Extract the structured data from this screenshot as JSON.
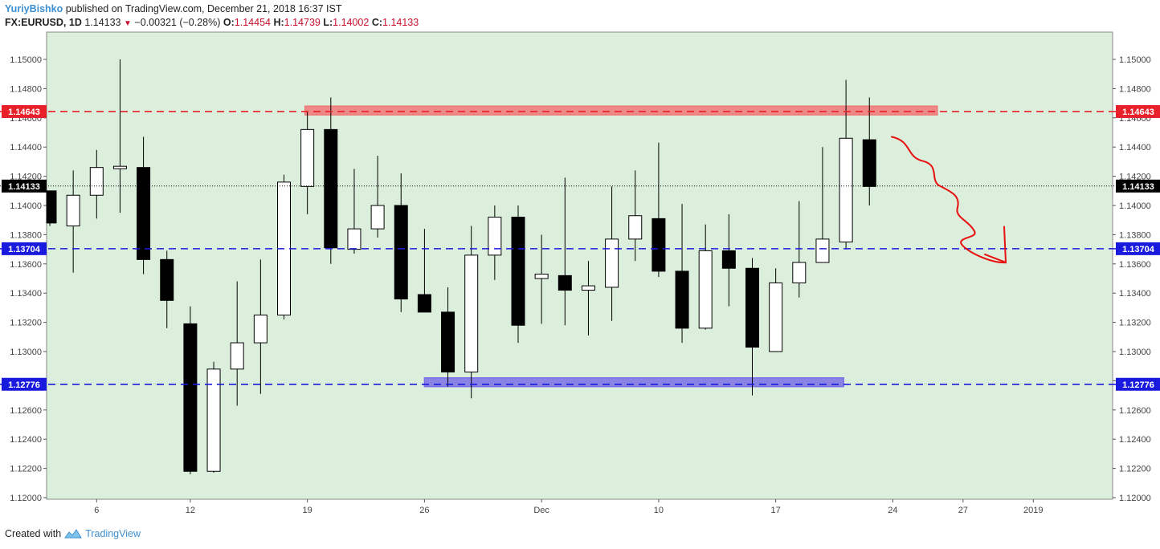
{
  "header": {
    "author": "YuriyBishko",
    "published": "published on TradingView.com, December 21, 2018 16:37 IST",
    "symbol": "FX:EURUSD, 1D",
    "last": "1.14133",
    "change": "−0.00321 (−0.28%)",
    "o_label": "O:",
    "o_value": "1.14454",
    "h_label": "H:",
    "h_value": "1.14739",
    "l_label": "L:",
    "l_value": "1.14002",
    "c_label": "C:",
    "c_value": "1.14133",
    "down_color": "#c8102e"
  },
  "footer": {
    "created_with": "Created with",
    "brand": "TradingView",
    "logo_icon": "tradingview-logo-icon"
  },
  "colors": {
    "background": "#dcefdc",
    "resistance_line": "#e8202a",
    "support_line": "#1a1adf",
    "resistance_zone": "#f07878",
    "support_zone": "#7a70e6",
    "annotation": "#e81010",
    "bull_body": "#ffffff",
    "bear_body": "#000000"
  },
  "chart_data": {
    "type": "candlestick",
    "symbol": "FX:EURUSD",
    "timeframe": "1D",
    "ylim": [
      1.12,
      1.1515
    ],
    "y_ticks": [
      "1.12000",
      "1.12200",
      "1.12400",
      "1.12600",
      "1.12800",
      "1.13000",
      "1.13200",
      "1.13400",
      "1.13600",
      "1.13800",
      "1.14000",
      "1.14200",
      "1.14400",
      "1.14600",
      "1.14800",
      "1.15000"
    ],
    "x_tick_labels": [
      {
        "label": "6",
        "bar": 2
      },
      {
        "label": "12",
        "bar": 6
      },
      {
        "label": "19",
        "bar": 11
      },
      {
        "label": "26",
        "bar": 16
      },
      {
        "label": "Dec",
        "bar": 21
      },
      {
        "label": "10",
        "bar": 26
      },
      {
        "label": "17",
        "bar": 31
      },
      {
        "label": "24",
        "bar": 36
      },
      {
        "label": "27",
        "bar": 39
      },
      {
        "label": "2019",
        "bar": 42
      }
    ],
    "candles": [
      {
        "o": 1.141,
        "h": 1.141,
        "l": 1.1386,
        "c": 1.1388
      },
      {
        "o": 1.1386,
        "h": 1.1424,
        "l": 1.1354,
        "c": 1.1407
      },
      {
        "o": 1.1407,
        "h": 1.1438,
        "l": 1.1391,
        "c": 1.1426
      },
      {
        "o": 1.1426,
        "h": 1.15,
        "l": 1.1395,
        "c": 1.1426
      },
      {
        "o": 1.1426,
        "h": 1.1447,
        "l": 1.1353,
        "c": 1.1363
      },
      {
        "o": 1.1363,
        "h": 1.1369,
        "l": 1.1316,
        "c": 1.1335
      },
      {
        "o": 1.1319,
        "h": 1.1331,
        "l": 1.1216,
        "c": 1.1218
      },
      {
        "o": 1.1218,
        "h": 1.1293,
        "l": 1.1217,
        "c": 1.1288
      },
      {
        "o": 1.1288,
        "h": 1.1348,
        "l": 1.1263,
        "c": 1.1306
      },
      {
        "o": 1.1306,
        "h": 1.1363,
        "l": 1.1271,
        "c": 1.1325
      },
      {
        "o": 1.1325,
        "h": 1.1421,
        "l": 1.1322,
        "c": 1.1416
      },
      {
        "o": 1.1413,
        "h": 1.1464,
        "l": 1.1394,
        "c": 1.1452
      },
      {
        "o": 1.1452,
        "h": 1.1474,
        "l": 1.136,
        "c": 1.1371
      },
      {
        "o": 1.137,
        "h": 1.1425,
        "l": 1.1367,
        "c": 1.1384
      },
      {
        "o": 1.1384,
        "h": 1.1434,
        "l": 1.1378,
        "c": 1.14
      },
      {
        "o": 1.14,
        "h": 1.1422,
        "l": 1.1327,
        "c": 1.1336
      },
      {
        "o": 1.1339,
        "h": 1.1384,
        "l": 1.1327,
        "c": 1.1327
      },
      {
        "o": 1.1327,
        "h": 1.1344,
        "l": 1.1276,
        "c": 1.1286
      },
      {
        "o": 1.1286,
        "h": 1.1386,
        "l": 1.1268,
        "c": 1.1366
      },
      {
        "o": 1.1366,
        "h": 1.14,
        "l": 1.1349,
        "c": 1.1392
      },
      {
        "o": 1.1392,
        "h": 1.14,
        "l": 1.1306,
        "c": 1.1318
      },
      {
        "o": 1.135,
        "h": 1.138,
        "l": 1.1319,
        "c": 1.1353
      },
      {
        "o": 1.1352,
        "h": 1.1419,
        "l": 1.1318,
        "c": 1.1342
      },
      {
        "o": 1.1342,
        "h": 1.1362,
        "l": 1.1311,
        "c": 1.1345
      },
      {
        "o": 1.1344,
        "h": 1.1413,
        "l": 1.1321,
        "c": 1.1377
      },
      {
        "o": 1.1377,
        "h": 1.1424,
        "l": 1.1362,
        "c": 1.1393
      },
      {
        "o": 1.1391,
        "h": 1.1443,
        "l": 1.1351,
        "c": 1.1355
      },
      {
        "o": 1.1355,
        "h": 1.1401,
        "l": 1.1306,
        "c": 1.1316
      },
      {
        "o": 1.1316,
        "h": 1.1387,
        "l": 1.1315,
        "c": 1.1369
      },
      {
        "o": 1.1369,
        "h": 1.1394,
        "l": 1.1331,
        "c": 1.1357
      },
      {
        "o": 1.1357,
        "h": 1.1364,
        "l": 1.127,
        "c": 1.1303
      },
      {
        "o": 1.13,
        "h": 1.1357,
        "l": 1.13,
        "c": 1.1347
      },
      {
        "o": 1.1347,
        "h": 1.1403,
        "l": 1.1337,
        "c": 1.1361
      },
      {
        "o": 1.1361,
        "h": 1.144,
        "l": 1.1361,
        "c": 1.1377
      },
      {
        "o": 1.1375,
        "h": 1.1486,
        "l": 1.137,
        "c": 1.1446
      },
      {
        "o": 1.1445,
        "h": 1.1474,
        "l": 1.14,
        "c": 1.1413
      }
    ],
    "horizontal_lines": [
      {
        "price": 1.14643,
        "label": "1.14643",
        "style": "dashed",
        "color_key": "resistance_line"
      },
      {
        "price": 1.13704,
        "label": "1.13704",
        "style": "dashed",
        "color_key": "support_line"
      },
      {
        "price": 1.12776,
        "label": "1.12776",
        "style": "dashed",
        "color_key": "support_line"
      },
      {
        "price": 1.14133,
        "label": "1.14133",
        "style": "dotted",
        "color_key": "last_price"
      }
    ],
    "zones": [
      {
        "from_bar": 10.9,
        "to_bar": 37.9,
        "top": 1.1468,
        "bottom": 1.1462,
        "color_key": "resistance_zone"
      },
      {
        "from_bar": 16.0,
        "to_bar": 33.9,
        "top": 1.1282,
        "bottom": 1.1276,
        "color_key": "support_zone"
      }
    ],
    "annotation": {
      "type": "freehand-arrow",
      "direction": "down",
      "from_price": 1.1447,
      "to_price": 1.1361
    }
  }
}
